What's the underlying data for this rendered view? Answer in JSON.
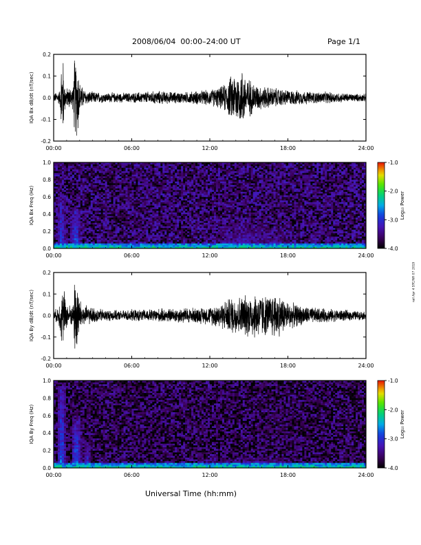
{
  "header": {
    "title": "2008/06/04  00:00–24:00 UT",
    "page": "Page 1/1"
  },
  "x_axis_title": "Universal Time (hh:mm)",
  "side_note": "rail Apr 4 STC/NR 07 2019",
  "colorbar": {
    "label": "Log₁₀ Power",
    "ticks": [
      "-1.0",
      "-2.0",
      "-3.0",
      "-4.0"
    ],
    "range": [
      -4.0,
      -1.0
    ]
  },
  "chart_data": [
    {
      "type": "line",
      "title": "",
      "xlabel": "",
      "ylabel": "IQA Bx dB/dt (nT/sec)",
      "xticks": [
        "00:00",
        "06:00",
        "12:00",
        "18:00",
        "24:00"
      ],
      "yticks": [
        "0.2",
        "0.1",
        "0.0",
        "-0.1",
        "-0.2"
      ],
      "xlim": [
        0,
        24
      ],
      "ylim": [
        -0.2,
        0.2
      ],
      "series": [
        {
          "x": [
            0,
            0.5,
            0.6,
            0.75,
            0.8,
            1.0,
            1.5,
            1.6,
            1.75,
            1.85,
            2.0,
            2.25,
            2.5,
            3,
            4,
            5,
            6,
            7,
            8,
            9,
            10,
            11,
            12,
            12.5,
            13,
            13.5,
            14,
            14.25,
            14.5,
            14.75,
            15,
            15.5,
            16,
            17,
            18,
            19,
            20,
            21,
            22,
            23,
            24
          ],
          "amp": [
            0.02,
            0.04,
            0.2,
            0.2,
            0.08,
            0.05,
            0.06,
            0.2,
            0.2,
            0.2,
            0.08,
            0.05,
            0.035,
            0.03,
            0.025,
            0.025,
            0.025,
            0.03,
            0.035,
            0.03,
            0.028,
            0.035,
            0.04,
            0.05,
            0.06,
            0.1,
            0.14,
            0.12,
            0.15,
            0.11,
            0.1,
            0.07,
            0.06,
            0.05,
            0.04,
            0.035,
            0.03,
            0.03,
            0.025,
            0.02,
            0.02
          ]
        }
      ]
    },
    {
      "type": "heatmap",
      "title": "",
      "xlabel": "",
      "ylabel": "IQA Bx Freq (Hz)",
      "xticks": [
        "00:00",
        "06:00",
        "12:00",
        "18:00",
        "24:00"
      ],
      "yticks": [
        "1.0",
        "0.8",
        "0.6",
        "0.4",
        "0.2",
        "0.0"
      ],
      "xlim": [
        0,
        24
      ],
      "ylim": [
        0,
        1.0
      ],
      "zlabel": "Log₁₀ Power",
      "zlim": [
        -4.0,
        -1.0
      ],
      "bursts": [
        {
          "t": 0.6,
          "w": 0.35,
          "fmax": 0.65,
          "level": -2.7
        },
        {
          "t": 1.7,
          "w": 0.4,
          "fmax": 0.45,
          "level": -2.6
        },
        {
          "t": 14.5,
          "w": 3.5,
          "fmax": 0.35,
          "level": -3.1
        },
        {
          "t": 17.0,
          "w": 2.5,
          "fmax": 0.25,
          "level": -3.2
        }
      ],
      "background_level": -3.6,
      "low_freq_level": -2.2
    },
    {
      "type": "line",
      "title": "",
      "xlabel": "",
      "ylabel": "IQA By dB/dt (nT/sec)",
      "xticks": [
        "00:00",
        "06:00",
        "12:00",
        "18:00",
        "24:00"
      ],
      "yticks": [
        "0.2",
        "0.1",
        "0.0",
        "-0.1",
        "-0.2"
      ],
      "xlim": [
        0,
        24
      ],
      "ylim": [
        -0.2,
        0.2
      ],
      "series": [
        {
          "x": [
            0,
            0.4,
            0.6,
            0.8,
            1.0,
            1.5,
            1.6,
            1.75,
            1.85,
            2.0,
            2.25,
            2.5,
            3,
            4,
            5,
            6,
            7,
            8,
            9,
            10,
            11,
            12,
            12.5,
            13,
            13.5,
            14,
            14.5,
            15,
            15.5,
            16,
            16.5,
            17,
            17.5,
            18,
            19,
            20,
            21,
            22,
            23,
            24
          ],
          "amp": [
            0.02,
            0.05,
            0.14,
            0.14,
            0.06,
            0.05,
            0.2,
            0.2,
            0.2,
            0.08,
            0.06,
            0.05,
            0.04,
            0.03,
            0.025,
            0.03,
            0.03,
            0.035,
            0.035,
            0.04,
            0.04,
            0.045,
            0.06,
            0.07,
            0.09,
            0.1,
            0.1,
            0.11,
            0.12,
            0.11,
            0.1,
            0.12,
            0.1,
            0.07,
            0.05,
            0.04,
            0.035,
            0.03,
            0.025,
            0.02
          ]
        }
      ]
    },
    {
      "type": "heatmap",
      "title": "",
      "xlabel": "Universal Time (hh:mm)",
      "ylabel": "IQA By Freq (Hz)",
      "xticks": [
        "00:00",
        "06:00",
        "12:00",
        "18:00",
        "24:00"
      ],
      "yticks": [
        "1.0",
        "0.8",
        "0.6",
        "0.4",
        "0.2",
        "0.0"
      ],
      "xlim": [
        0,
        24
      ],
      "ylim": [
        0,
        1.0
      ],
      "zlabel": "Log₁₀ Power",
      "zlim": [
        -4.0,
        -1.0
      ],
      "bursts": [
        {
          "t": 0.6,
          "w": 0.35,
          "fmax": 0.95,
          "level": -2.6
        },
        {
          "t": 1.75,
          "w": 0.4,
          "fmax": 0.55,
          "level": -2.6
        },
        {
          "t": 2.6,
          "w": 0.4,
          "fmax": 0.3,
          "level": -2.9
        },
        {
          "t": 15.5,
          "w": 4.0,
          "fmax": 0.12,
          "level": -3.0
        }
      ],
      "background_level": -3.7,
      "low_freq_level": -2.2
    }
  ]
}
